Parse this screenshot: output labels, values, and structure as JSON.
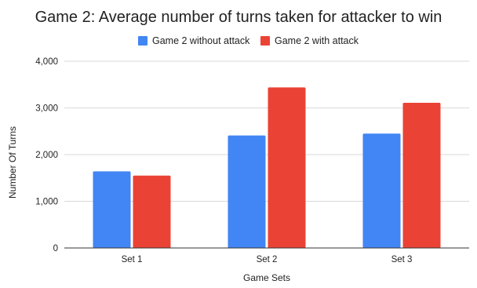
{
  "chart_data": {
    "type": "bar",
    "title": "Game 2: Average number of turns taken for attacker to win",
    "xlabel": "Game Sets",
    "ylabel": "Number Of Turns",
    "categories": [
      "Set 1",
      "Set 2",
      "Set 3"
    ],
    "series": [
      {
        "name": "Game 2 without attack",
        "color": "#4285f4",
        "values": [
          1640,
          2410,
          2450
        ]
      },
      {
        "name": "Game 2 with attack",
        "color": "#ea4335",
        "values": [
          1550,
          3440,
          3110
        ]
      }
    ],
    "ylim": [
      0,
      4000
    ],
    "yticks": [
      0,
      1000,
      2000,
      3000,
      4000
    ],
    "ytick_labels": [
      "0",
      "1,000",
      "2,000",
      "3,000",
      "4,000"
    ],
    "grid": true,
    "legend_position": "top-center"
  }
}
